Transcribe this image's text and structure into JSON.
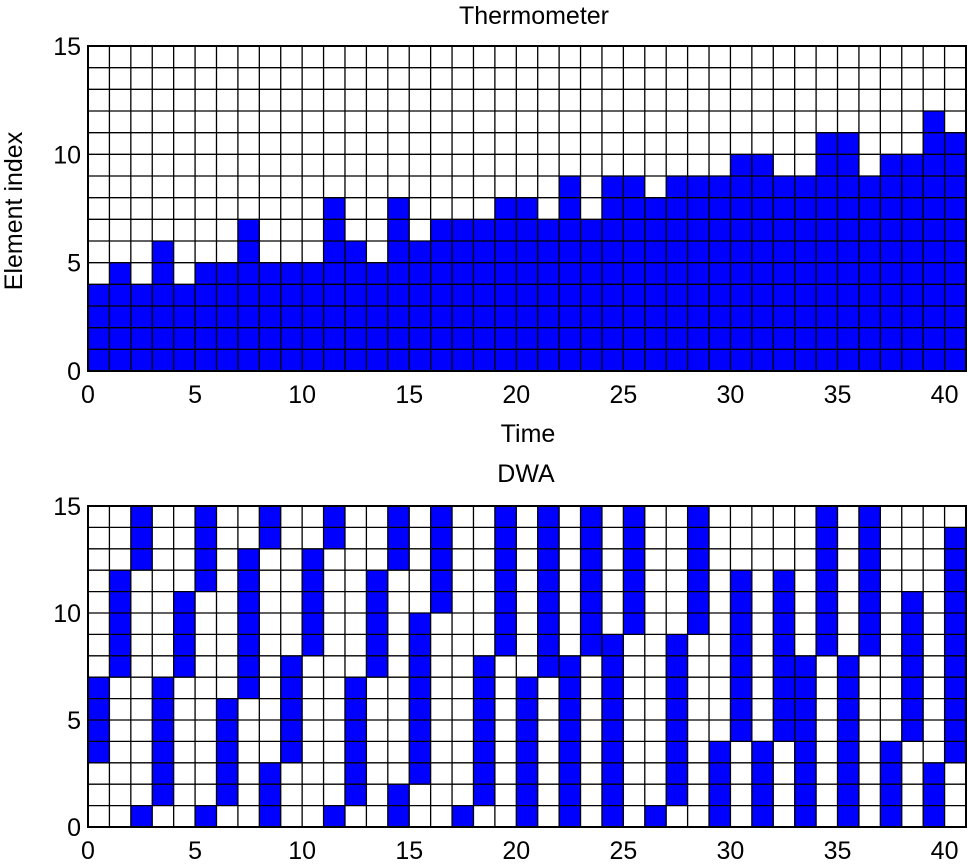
{
  "chart_data": [
    {
      "type": "heatmap",
      "title": "Thermometer",
      "xlabel": "Time",
      "ylabel": "Element index",
      "xlim": [
        0,
        41
      ],
      "ylim": [
        0,
        15
      ],
      "x_ticks": [
        0,
        5,
        10,
        15,
        20,
        25,
        30,
        35,
        40
      ],
      "y_ticks": [
        0,
        5,
        10,
        15
      ],
      "grid": true,
      "fill_color": "#0000ff",
      "values": [
        4,
        5,
        4,
        6,
        4,
        5,
        5,
        7,
        5,
        5,
        5,
        8,
        6,
        5,
        8,
        6,
        7,
        7,
        7,
        8,
        8,
        7,
        9,
        7,
        9,
        9,
        8,
        9,
        9,
        9,
        10,
        10,
        9,
        9,
        11,
        11,
        9,
        10,
        10,
        12,
        11
      ]
    },
    {
      "type": "heatmap",
      "title": "DWA",
      "xlabel": "",
      "ylabel": "",
      "xlim": [
        0,
        41
      ],
      "ylim": [
        0,
        15
      ],
      "x_ticks": [
        0,
        5,
        10,
        15,
        20,
        25,
        30,
        35,
        40
      ],
      "y_ticks": [
        0,
        5,
        10,
        15
      ],
      "grid": true,
      "fill_color": "#0000ff",
      "intervals": [
        [
          3,
          7
        ],
        [
          7,
          12
        ],
        [
          0,
          1
        ],
        [
          12,
          15
        ],
        [
          1,
          7
        ],
        [
          7,
          11
        ],
        [
          0,
          1
        ],
        [
          11,
          15
        ],
        [
          1,
          6
        ],
        [
          6,
          13
        ],
        [
          0,
          3
        ],
        [
          13,
          15
        ],
        [
          3,
          8
        ],
        [
          8,
          13
        ],
        [
          0,
          1
        ],
        [
          13,
          15
        ],
        [
          1,
          7
        ],
        [
          7,
          12
        ],
        [
          0,
          2
        ],
        [
          12,
          15
        ],
        [
          2,
          10
        ],
        [
          10,
          15
        ],
        [
          0,
          1
        ],
        [
          1,
          8
        ],
        [
          8,
          15
        ],
        [
          0,
          7
        ],
        [
          7,
          15
        ],
        [
          0,
          8
        ],
        [
          8,
          16
        ],
        [
          0,
          9
        ],
        [
          9,
          15
        ],
        [
          0,
          1
        ],
        [
          1,
          9
        ],
        [
          9,
          15
        ],
        [
          0,
          4
        ],
        [
          4,
          12
        ],
        [
          0,
          4
        ],
        [
          4,
          12
        ],
        [
          0,
          8
        ],
        [
          8,
          15
        ],
        [
          0,
          8
        ],
        [
          8,
          15
        ],
        [
          0,
          4
        ],
        [
          4,
          11
        ],
        [
          0,
          3
        ],
        [
          3,
          14
        ],
        [
          0,
          1
        ],
        [
          1,
          9
        ],
        [
          9,
          15
        ],
        [
          0,
          5
        ],
        [
          5,
          13
        ],
        [
          0,
          5
        ],
        [
          5,
          15
        ],
        [
          0,
          8
        ],
        [
          8,
          14
        ],
        [
          0,
          4
        ],
        [
          4,
          14
        ],
        [
          0,
          1
        ],
        [
          1,
          15
        ]
      ]
    }
  ]
}
